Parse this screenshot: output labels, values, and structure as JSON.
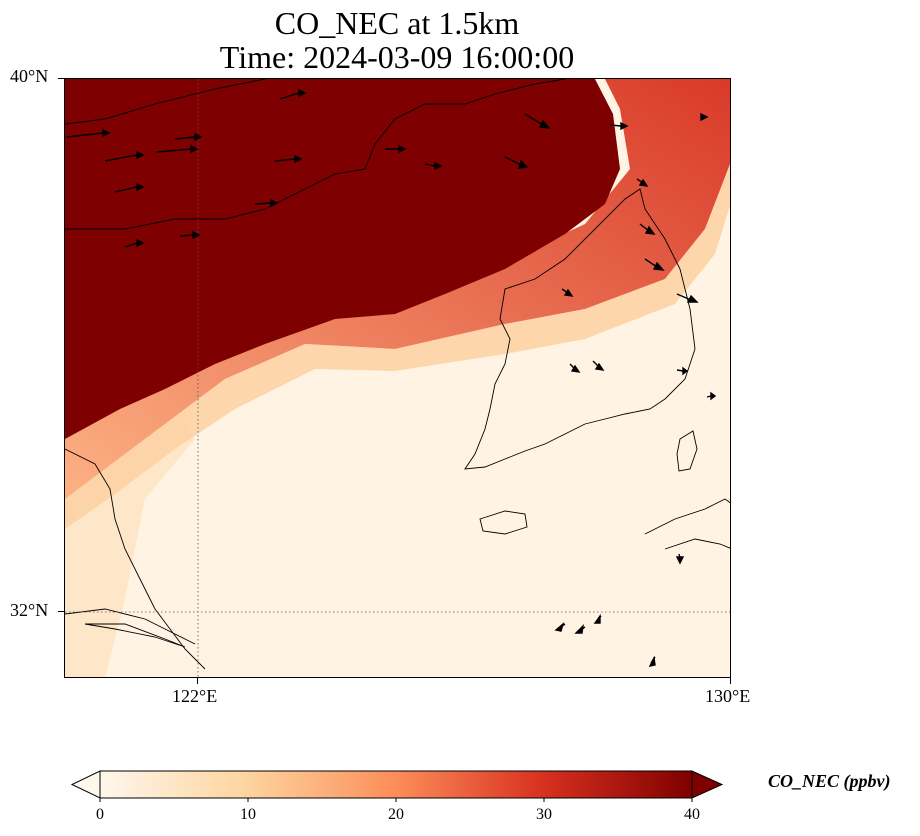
{
  "title": {
    "line1": "CO_NEC at 1.5km",
    "line2": "Time: 2024-03-09 16:00:00"
  },
  "axes": {
    "lat_ticks": [
      "40°N",
      "32°N"
    ],
    "lon_ticks": [
      "122°E",
      "130°E"
    ]
  },
  "colorbar": {
    "label": "CO_NEC (ppbv)",
    "ticks": [
      "0",
      "10",
      "20",
      "30",
      "40"
    ],
    "colormap": "OrRd",
    "range": [
      0,
      40
    ],
    "extend": "both",
    "colors": [
      "#fff7ec",
      "#fdd49e",
      "#fc8d59",
      "#d7301f",
      "#7f0000"
    ]
  },
  "map": {
    "region": "Yellow Sea / Korean Peninsula",
    "lon_range": [
      120,
      130
    ],
    "lat_range": [
      31,
      40
    ],
    "gridlines": "dotted at 122°E and 32°N",
    "high_color": "#7f0000",
    "background_color": "#fff5e8"
  }
}
